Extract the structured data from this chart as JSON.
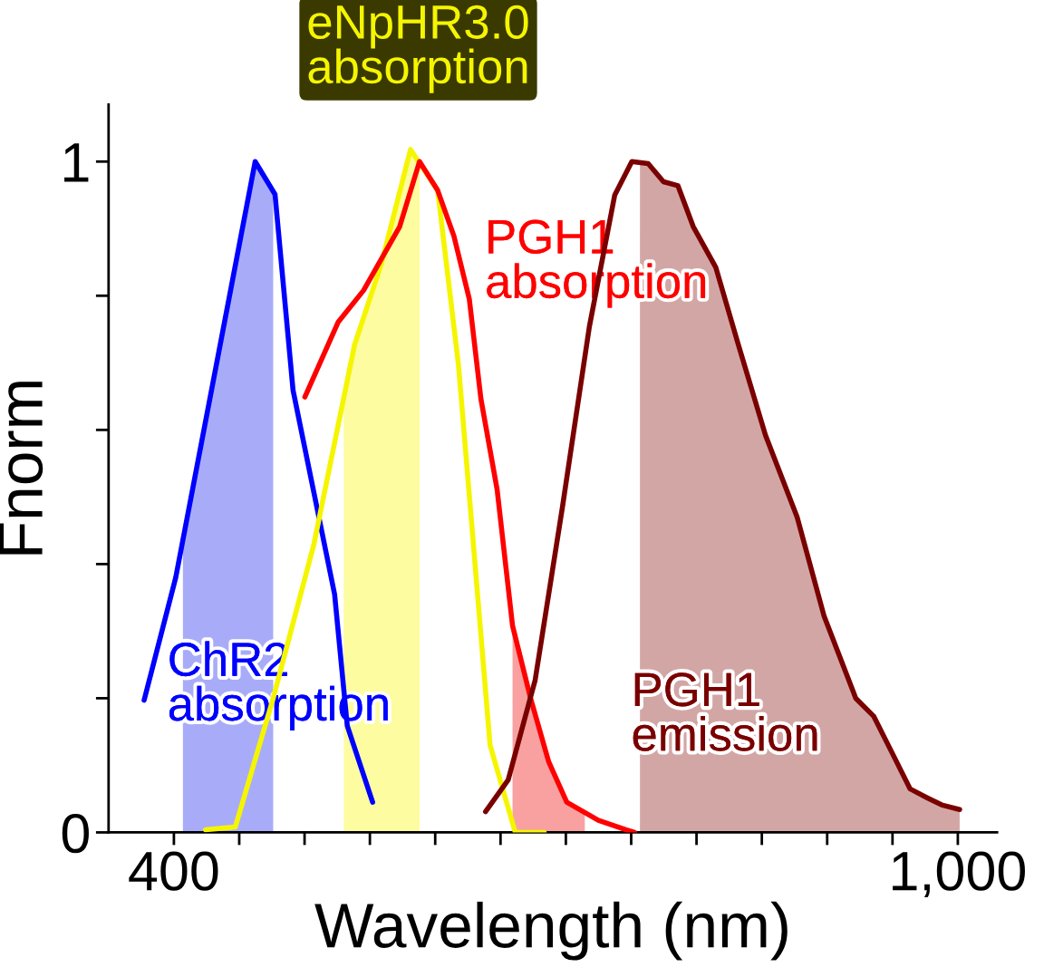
{
  "chart_data": {
    "type": "line",
    "xlabel": "Wavelength (nm)",
    "ylabel": "Fnorm",
    "xlim": [
      350,
      1030
    ],
    "ylim": [
      0,
      1.085
    ],
    "xticks": [
      400,
      {
        "value": 450,
        "label": null
      },
      {
        "value": 500,
        "label": null
      },
      {
        "value": 550,
        "label": null
      },
      {
        "value": 600,
        "label": null
      },
      {
        "value": 650,
        "label": null
      },
      {
        "value": 700,
        "label": null
      },
      {
        "value": 750,
        "label": null
      },
      {
        "value": 800,
        "label": null
      },
      {
        "value": 850,
        "label": null
      },
      {
        "value": 900,
        "label": null
      },
      {
        "value": 950,
        "label": null
      },
      {
        "value": 1000,
        "label": "1,000"
      }
    ],
    "yticks": [
      0,
      {
        "value": 0.2,
        "label": null
      },
      {
        "value": 0.4,
        "label": null
      },
      {
        "value": 0.6,
        "label": null
      },
      {
        "value": 0.8,
        "label": null
      },
      1
    ],
    "grid": false,
    "legend": false,
    "series": [
      {
        "type": "area",
        "color": "#a8acf8",
        "x": [
          406.9,
          462.2,
          476.0
        ],
        "values": [
          0.436,
          1.0,
          0.956
        ]
      },
      {
        "type": "area",
        "color": "#fdfca0",
        "x": [
          530.0,
          538.3,
          559.0,
          581.1,
          588.1
        ],
        "values": [
          0.648,
          0.727,
          0.849,
          1.018,
          0.997
        ]
      },
      {
        "type": "area",
        "color": "#f9a0a0",
        "x": [
          659.2,
          673.0,
          686.9,
          700.7,
          714.5
        ],
        "values": [
          0.308,
          0.2,
          0.105,
          0.045,
          0.03
        ]
      },
      {
        "type": "area",
        "color": "#d3a6a6",
        "x": [
          756.7,
          763.0,
          774.7,
          785.8,
          797.5,
          814.8,
          832.0,
          852.8,
          877.0,
          897.7,
          921.9,
          935.7,
          949.6,
          963.4,
          977.2,
          987.6,
          1001.4
        ],
        "values": [
          0.998,
          0.997,
          0.97,
          0.964,
          0.903,
          0.842,
          0.727,
          0.592,
          0.47,
          0.322,
          0.2,
          0.173,
          0.119,
          0.065,
          0.051,
          0.041,
          0.034
        ]
      },
      {
        "name": "ChR2\nabsorption",
        "color": "#0000ff",
        "x": [
          377.2,
          401.4,
          462.2,
          477.4,
          491.2,
          523.0,
          532.7,
          552.1
        ],
        "values": [
          0.197,
          0.38,
          1.0,
          0.951,
          0.659,
          0.355,
          0.159,
          0.045
        ]
      },
      {
        "name": "eNpHR3.0\nabsorption",
        "color": "#f5f500",
        "x": [
          424.2,
          447.0,
          476.0,
          507.2,
          538.3,
          559.0,
          581.1,
          601.9,
          617.8,
          642.0,
          661.3,
          683.4
        ],
        "values": [
          0.004,
          0.008,
          0.2,
          0.43,
          0.727,
          0.849,
          1.018,
          0.957,
          0.697,
          0.13,
          0,
          0
        ]
      },
      {
        "name": "PGH1\nabsorption",
        "color": "#ff0000",
        "x": [
          500.2,
          525.8,
          545.2,
          572.8,
          588.0,
          601.9,
          614.3,
          626.1,
          635.0,
          647.4,
          659.2,
          673.0,
          686.9,
          700.7,
          724.9,
          745.7,
          752.6
        ],
        "values": [
          0.649,
          0.761,
          0.808,
          0.903,
          1.0,
          0.957,
          0.889,
          0.795,
          0.646,
          0.511,
          0.308,
          0.2,
          0.105,
          0.045,
          0.018,
          0.004,
          0
        ]
      },
      {
        "name": "PGH1\nemission",
        "color": "#7a0000",
        "x": [
          638.5,
          655.8,
          676.5,
          697.3,
          718.0,
          737.4,
          750.5,
          763.0,
          774.7,
          785.8,
          797.5,
          814.8,
          832.0,
          852.8,
          877.0,
          897.7,
          921.9,
          935.7,
          949.6,
          963.4,
          977.2,
          987.6,
          1001.4
        ],
        "values": [
          0.031,
          0.078,
          0.227,
          0.484,
          0.754,
          0.95,
          1.0,
          0.997,
          0.97,
          0.964,
          0.903,
          0.842,
          0.727,
          0.592,
          0.47,
          0.322,
          0.2,
          0.173,
          0.119,
          0.065,
          0.051,
          0.041,
          0.034
        ]
      }
    ]
  }
}
